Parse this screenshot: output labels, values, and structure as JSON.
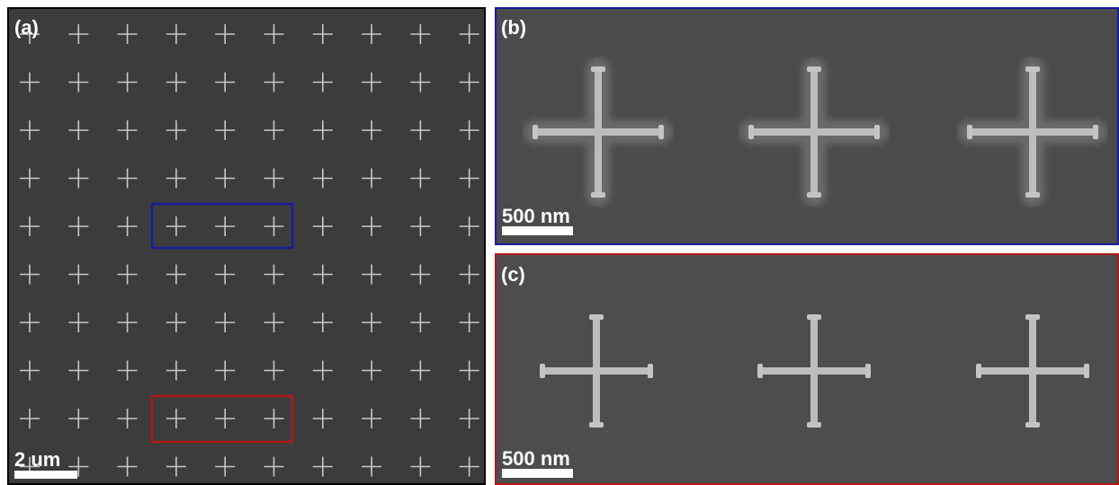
{
  "panels": [
    {
      "label": "(a)",
      "scale_bar": "2 um"
    },
    {
      "label": "(b)",
      "scale_bar": "500 nm"
    },
    {
      "label": "(c)",
      "scale_bar": "500 nm"
    }
  ]
}
